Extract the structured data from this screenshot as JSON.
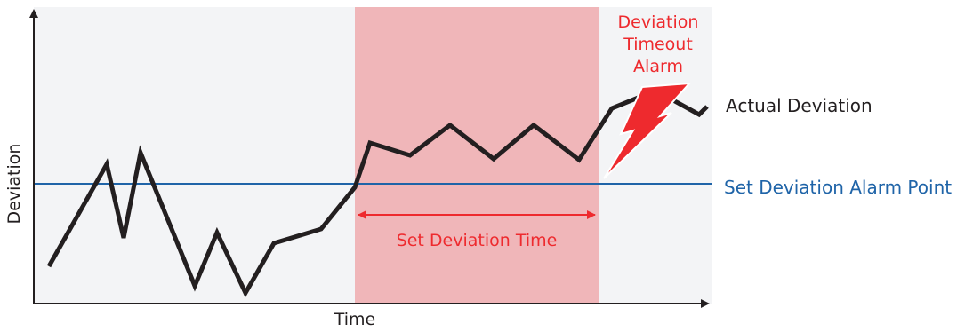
{
  "diagram": {
    "axes": {
      "y_label": "Deviation",
      "x_label": "Time"
    },
    "labels": {
      "actual_deviation": "Actual Deviation",
      "set_point": "Set Deviation Alarm Point",
      "set_time": "Set Deviation Time",
      "alarm_line1": "Deviation",
      "alarm_line2": "Timeout",
      "alarm_line3": "Alarm"
    },
    "colors": {
      "background": "#f3f4f6",
      "highlight_band": "#f0b6b9",
      "trace": "#231f20",
      "set_point": "#1f64a8",
      "alarm_red": "#ee2a2e",
      "axis": "#231f20"
    },
    "icons": {
      "alarm": "lightning-bolt-icon"
    }
  }
}
